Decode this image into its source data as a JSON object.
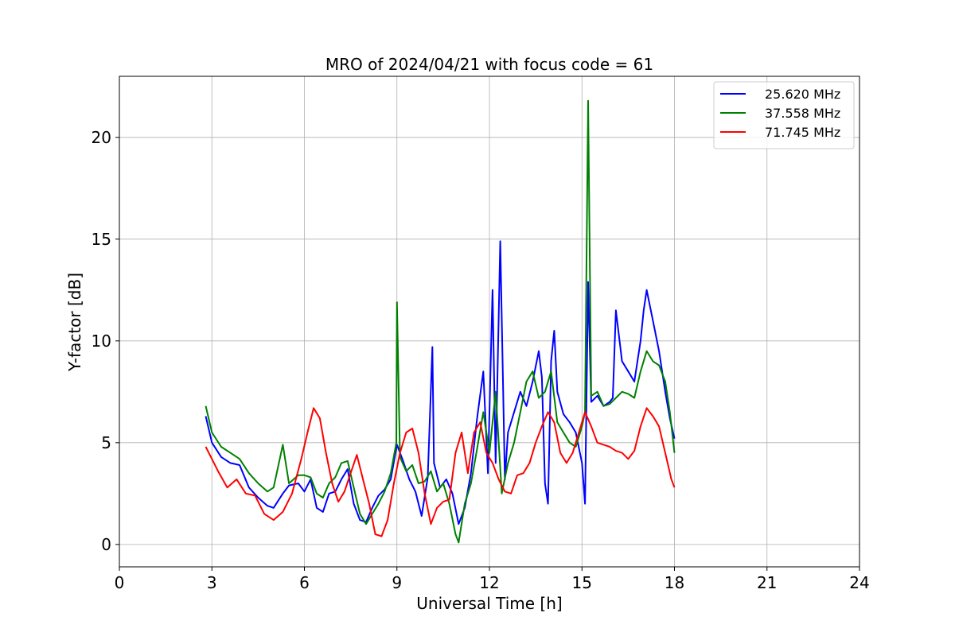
{
  "chart_data": {
    "type": "line",
    "title": "MRO of 2024/04/21 with focus code = 61",
    "xlabel": "Universal Time [h]",
    "ylabel": "Y-factor [dB]",
    "xlim": [
      0,
      24
    ],
    "ylim": [
      -1.1,
      23
    ],
    "xticks": [
      0,
      3,
      6,
      9,
      12,
      15,
      18,
      21,
      24
    ],
    "yticks": [
      0,
      5,
      10,
      15,
      20
    ],
    "grid": true,
    "legend_position": "top-right",
    "series": [
      {
        "name": "25.620 MHz",
        "color": "#0000ff",
        "x": [
          2.8,
          3.0,
          3.3,
          3.6,
          3.9,
          4.2,
          4.5,
          4.8,
          5.0,
          5.3,
          5.5,
          5.8,
          6.0,
          6.2,
          6.4,
          6.6,
          6.8,
          7.0,
          7.2,
          7.4,
          7.6,
          7.8,
          8.0,
          8.2,
          8.4,
          8.6,
          8.8,
          9.0,
          9.2,
          9.4,
          9.6,
          9.8,
          10.0,
          10.15,
          10.2,
          10.4,
          10.6,
          10.8,
          11.0,
          11.2,
          11.4,
          11.6,
          11.8,
          11.95,
          12.1,
          12.2,
          12.35,
          12.5,
          12.6,
          12.8,
          13.0,
          13.2,
          13.4,
          13.6,
          13.7,
          13.8,
          13.9,
          14.0,
          14.1,
          14.2,
          14.4,
          14.6,
          14.8,
          15.0,
          15.1,
          15.2,
          15.3,
          15.5,
          15.7,
          15.9,
          16.0,
          16.1,
          16.3,
          16.5,
          16.7,
          16.9,
          17.0,
          17.1,
          17.3,
          17.5,
          17.7,
          17.85,
          18.0
        ],
        "y": [
          6.3,
          5.0,
          4.3,
          4.0,
          3.9,
          2.8,
          2.3,
          1.9,
          1.8,
          2.5,
          2.9,
          3.0,
          2.6,
          3.2,
          1.8,
          1.6,
          2.5,
          2.6,
          3.2,
          3.7,
          2.0,
          1.2,
          1.1,
          1.8,
          2.4,
          2.7,
          3.2,
          4.9,
          4.1,
          3.2,
          2.6,
          1.4,
          3.3,
          9.7,
          4.0,
          2.8,
          3.2,
          2.5,
          1.0,
          1.8,
          3.5,
          6.2,
          8.5,
          3.5,
          12.5,
          4.0,
          14.9,
          3.2,
          5.5,
          6.5,
          7.5,
          6.8,
          8.0,
          9.5,
          8.2,
          3.0,
          2.0,
          9.0,
          10.5,
          7.5,
          6.4,
          6.0,
          5.5,
          4.0,
          2.0,
          12.9,
          7.0,
          7.3,
          6.8,
          7.0,
          7.2,
          11.5,
          9.0,
          8.5,
          8.0,
          10.0,
          11.5,
          12.5,
          11.0,
          9.5,
          7.5,
          6.2,
          5.2
        ]
      },
      {
        "name": "37.558 MHz",
        "color": "#008000",
        "x": [
          2.8,
          3.0,
          3.3,
          3.6,
          3.9,
          4.2,
          4.5,
          4.8,
          5.0,
          5.3,
          5.5,
          5.8,
          6.0,
          6.2,
          6.4,
          6.6,
          6.8,
          7.0,
          7.2,
          7.4,
          7.6,
          7.8,
          8.0,
          8.2,
          8.4,
          8.6,
          8.8,
          8.98,
          9.0,
          9.1,
          9.3,
          9.5,
          9.7,
          9.9,
          10.1,
          10.3,
          10.5,
          10.7,
          10.9,
          11.0,
          11.2,
          11.4,
          11.6,
          11.8,
          12.0,
          12.2,
          12.4,
          12.6,
          12.8,
          13.0,
          13.2,
          13.4,
          13.6,
          13.8,
          14.0,
          14.2,
          14.4,
          14.6,
          14.8,
          15.0,
          15.1,
          15.2,
          15.3,
          15.5,
          15.7,
          15.9,
          16.1,
          16.3,
          16.5,
          16.7,
          16.9,
          17.1,
          17.3,
          17.5,
          17.7,
          17.85,
          18.0
        ],
        "y": [
          6.8,
          5.5,
          4.8,
          4.5,
          4.2,
          3.5,
          3.0,
          2.6,
          2.8,
          4.9,
          3.0,
          3.4,
          3.4,
          3.3,
          2.5,
          2.3,
          3.0,
          3.3,
          4.0,
          4.1,
          2.8,
          1.5,
          1.0,
          1.5,
          2.0,
          2.6,
          3.5,
          5.0,
          11.9,
          4.3,
          3.6,
          3.9,
          3.0,
          3.1,
          3.6,
          2.6,
          3.0,
          2.0,
          0.5,
          0.1,
          2.0,
          3.0,
          4.7,
          6.5,
          4.5,
          7.5,
          2.5,
          4.0,
          5.0,
          6.5,
          8.0,
          8.5,
          7.2,
          7.5,
          8.5,
          6.0,
          5.5,
          5.0,
          4.8,
          5.8,
          6.5,
          21.8,
          7.3,
          7.5,
          6.8,
          6.9,
          7.2,
          7.5,
          7.4,
          7.2,
          8.5,
          9.5,
          9.0,
          8.8,
          8.0,
          6.5,
          4.5
        ]
      },
      {
        "name": "71.745 MHz",
        "color": "#ff0000",
        "x": [
          2.8,
          3.0,
          3.2,
          3.5,
          3.8,
          4.1,
          4.4,
          4.7,
          5.0,
          5.3,
          5.6,
          5.9,
          6.1,
          6.3,
          6.5,
          6.7,
          6.9,
          7.1,
          7.3,
          7.5,
          7.7,
          7.9,
          8.1,
          8.3,
          8.5,
          8.7,
          8.9,
          9.1,
          9.3,
          9.5,
          9.7,
          9.9,
          10.1,
          10.3,
          10.5,
          10.7,
          10.9,
          11.1,
          11.3,
          11.5,
          11.7,
          11.9,
          12.1,
          12.3,
          12.5,
          12.7,
          12.9,
          13.1,
          13.3,
          13.5,
          13.7,
          13.9,
          14.1,
          14.3,
          14.5,
          14.7,
          14.9,
          15.1,
          15.3,
          15.5,
          15.7,
          15.9,
          16.1,
          16.3,
          16.5,
          16.7,
          16.9,
          17.1,
          17.3,
          17.5,
          17.7,
          17.9,
          18.0
        ],
        "y": [
          4.8,
          4.2,
          3.6,
          2.8,
          3.2,
          2.5,
          2.4,
          1.5,
          1.2,
          1.6,
          2.5,
          4.2,
          5.5,
          6.7,
          6.2,
          4.5,
          3.0,
          2.1,
          2.6,
          3.5,
          4.4,
          3.2,
          2.0,
          0.5,
          0.4,
          1.2,
          3.0,
          4.5,
          5.5,
          5.7,
          4.5,
          2.5,
          1.0,
          1.8,
          2.1,
          2.2,
          4.5,
          5.5,
          3.5,
          5.5,
          6.0,
          4.5,
          4.0,
          3.2,
          2.6,
          2.5,
          3.4,
          3.5,
          4.0,
          5.0,
          5.8,
          6.5,
          6.0,
          4.5,
          4.0,
          4.5,
          5.5,
          6.5,
          5.8,
          5.0,
          4.9,
          4.8,
          4.6,
          4.5,
          4.2,
          4.6,
          5.8,
          6.7,
          6.3,
          5.8,
          4.5,
          3.2,
          2.8
        ]
      }
    ]
  }
}
